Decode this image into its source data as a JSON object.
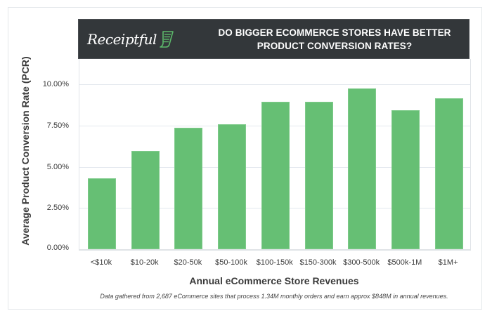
{
  "header": {
    "logo_text": "Receiptful",
    "logo_icon": "receipt-icon",
    "title_line1": "DO BIGGER ECOMMERCE STORES HAVE BETTER",
    "title_line2": "PRODUCT CONVERSION RATES?",
    "background": "#33373a",
    "accent": "#5cb86a"
  },
  "colors": {
    "bar": "#66bf74",
    "grid": "#e3e8ee"
  },
  "y_ticks": [
    "0.00%",
    "2.50%",
    "5.00%",
    "7.50%",
    "10.00%"
  ],
  "footnote": "Data gathered from 2,687 eCommerce sites that process 1.34M monthly orders and earn approx $848M in annual revenues.",
  "chart_data": {
    "type": "bar",
    "title": "DO BIGGER ECOMMERCE STORES HAVE BETTER PRODUCT CONVERSION RATES?",
    "xlabel": "Annual eCommerce Store Revenues",
    "ylabel": "Average Product Conversion Rate (PCR)",
    "categories": [
      "<$10k",
      "$10-20k",
      "$20-50k",
      "$50-100k",
      "$100-150k",
      "$150-300k",
      "$300-500k",
      "$500k-1M",
      "$1M+"
    ],
    "values": [
      4.3,
      5.96,
      7.36,
      7.57,
      8.94,
      8.94,
      9.74,
      8.43,
      9.15
    ],
    "unit": "%",
    "ylim": [
      0,
      11.5
    ],
    "y_tick_values": [
      0,
      2.5,
      5,
      7.5,
      10
    ],
    "grid": true,
    "legend": null
  }
}
